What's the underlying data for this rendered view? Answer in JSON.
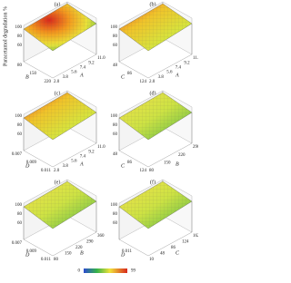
{
  "y_axis_label": "Paracetamol degradation %",
  "panels": [
    {
      "label": "(a)",
      "z_ticks": [
        "100",
        "80",
        "60"
      ],
      "left_axis": "B",
      "left_ticks": [
        "80",
        "150",
        "220"
      ],
      "right_axis": "A",
      "right_ticks": [
        "2.0",
        "3.8",
        "5.6",
        "7.4",
        "9.2",
        "11.0"
      ]
    },
    {
      "label": "(b)",
      "z_ticks": [
        "100",
        "80",
        "60"
      ],
      "left_axis": "C",
      "left_ticks": [
        "48",
        "86",
        "124"
      ],
      "right_axis": "A",
      "right_ticks": [
        "2.0",
        "3.8",
        "5.6",
        "7.4",
        "9.2",
        "11.0"
      ]
    },
    {
      "label": "(c)",
      "z_ticks": [
        "100",
        "80",
        "60"
      ],
      "left_axis": "D",
      "left_ticks": [
        "0.007",
        "0.009",
        "0.011"
      ],
      "right_axis": "A",
      "right_ticks": [
        "2.0",
        "3.8",
        "5.6",
        "7.4",
        "9.2",
        "11.0"
      ]
    },
    {
      "label": "(d)",
      "z_ticks": [
        "100",
        "80",
        "60"
      ],
      "left_axis": "C",
      "left_ticks": [
        "48",
        "86",
        "124"
      ],
      "right_axis": "B",
      "right_ticks": [
        "80",
        "150",
        "220",
        "290"
      ]
    },
    {
      "label": "(e)",
      "z_ticks": [
        "100",
        "80",
        "60"
      ],
      "left_axis": "D",
      "left_ticks": [
        "0.007",
        "0.009",
        "0.011"
      ],
      "right_axis": "B",
      "right_ticks": [
        "80",
        "150",
        "220",
        "290",
        "360"
      ]
    },
    {
      "label": "(f)",
      "z_ticks": [
        "100",
        "80",
        "60"
      ],
      "left_axis": "D",
      "left_ticks": [
        "0.011"
      ],
      "right_axis": "C",
      "right_ticks": [
        "10",
        "48",
        "86",
        "124",
        "162"
      ]
    }
  ],
  "colorbar": {
    "min": "0",
    "max": "99"
  }
}
